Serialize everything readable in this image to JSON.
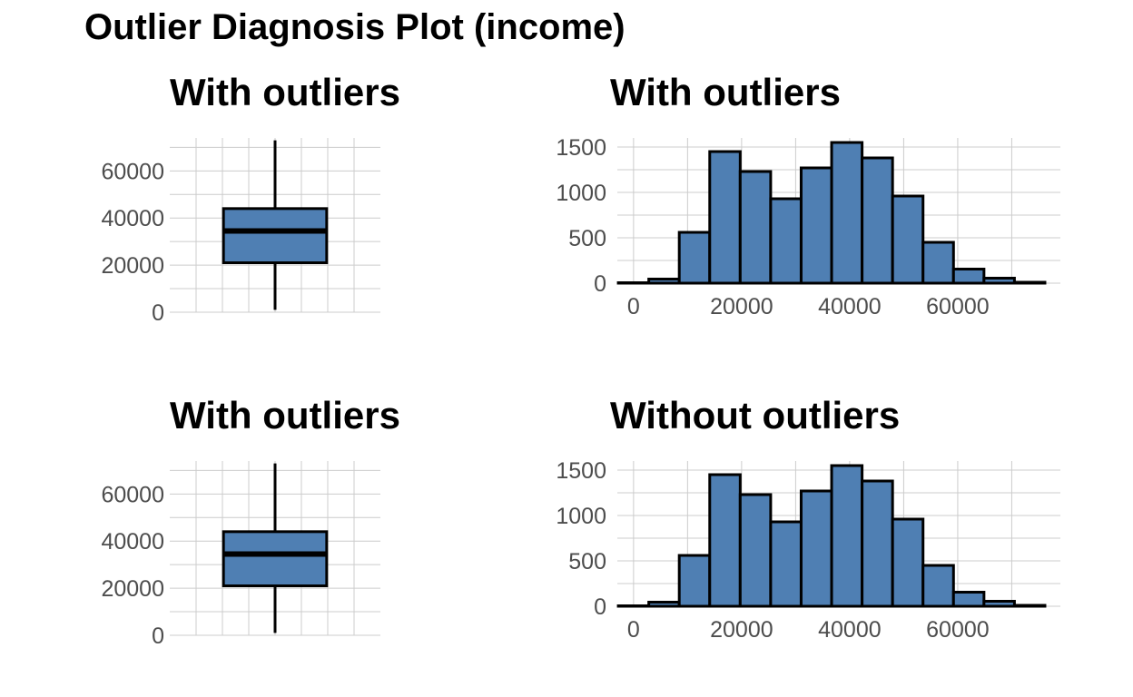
{
  "title": "Outlier Diagnosis Plot (income)",
  "colors": {
    "fill": "#4F7FB3",
    "outline": "#000000",
    "grid": "#cccccc",
    "tick_text": "#4d4d4d"
  },
  "chart_data": [
    {
      "type": "box",
      "title": "With outliers",
      "ylim": [
        0,
        74000
      ],
      "yticks": [
        "0",
        "20000",
        "40000",
        "60000"
      ],
      "ytick_values": [
        0,
        20000,
        40000,
        60000
      ],
      "box": {
        "min": 1000,
        "q1": 21000,
        "median": 34500,
        "q3": 44000,
        "max": 73000
      },
      "grid": true
    },
    {
      "type": "bar",
      "title": "With outliers",
      "xlim": [
        -3000,
        79000
      ],
      "ylim": [
        0,
        1600
      ],
      "xticks": [
        "0",
        "20000",
        "40000",
        "60000"
      ],
      "xtick_values": [
        0,
        20000,
        40000,
        60000
      ],
      "yticks": [
        "0",
        "500",
        "1000",
        "1500"
      ],
      "ytick_values": [
        0,
        500,
        1000,
        1500
      ],
      "bin_start": -2820,
      "bin_width": 5640,
      "values": [
        5,
        45,
        560,
        1450,
        1230,
        930,
        1270,
        1550,
        1380,
        960,
        450,
        155,
        55,
        10
      ],
      "grid": true
    },
    {
      "type": "box",
      "title": "With outliers",
      "ylim": [
        0,
        74000
      ],
      "yticks": [
        "0",
        "20000",
        "40000",
        "60000"
      ],
      "ytick_values": [
        0,
        20000,
        40000,
        60000
      ],
      "box": {
        "min": 1000,
        "q1": 21000,
        "median": 34500,
        "q3": 44000,
        "max": 73000
      },
      "grid": true
    },
    {
      "type": "bar",
      "title": "Without outliers",
      "xlim": [
        -3000,
        79000
      ],
      "ylim": [
        0,
        1600
      ],
      "xticks": [
        "0",
        "20000",
        "40000",
        "60000"
      ],
      "xtick_values": [
        0,
        20000,
        40000,
        60000
      ],
      "yticks": [
        "0",
        "500",
        "1000",
        "1500"
      ],
      "ytick_values": [
        0,
        500,
        1000,
        1500
      ],
      "bin_start": -2820,
      "bin_width": 5640,
      "values": [
        5,
        45,
        560,
        1450,
        1230,
        930,
        1270,
        1550,
        1380,
        960,
        450,
        155,
        55,
        10
      ],
      "grid": true
    }
  ]
}
